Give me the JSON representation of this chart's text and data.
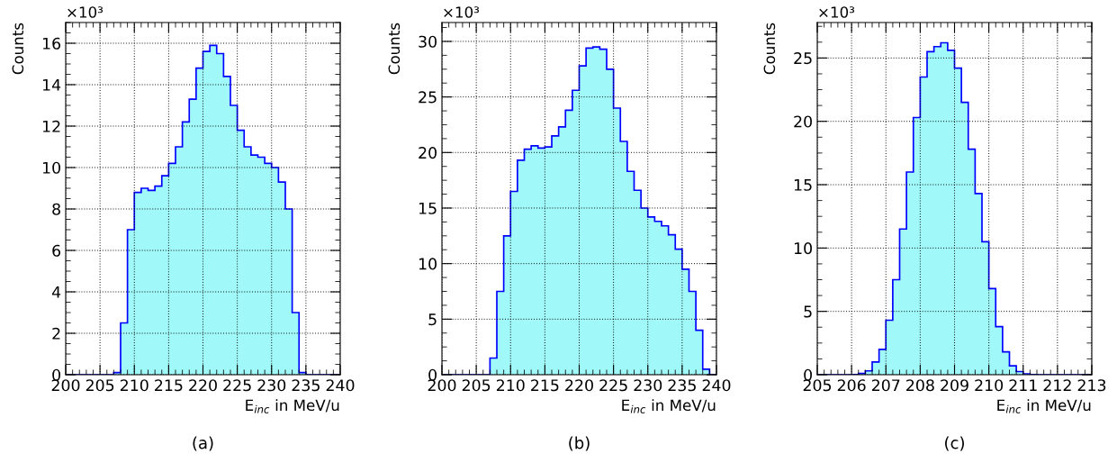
{
  "chart_data": [
    {
      "type": "histogram",
      "xlabel": "E$_{inc}$ in MeV/u",
      "ylabel": "Counts",
      "annotations": [
        "×10³",
        "(a)"
      ],
      "color": "#a0f8f8",
      "grid": true,
      "bins": [
        200,
        201,
        202,
        203,
        204,
        205,
        206,
        207,
        208,
        209,
        210,
        211,
        212,
        213,
        214,
        215,
        216,
        217,
        218,
        219,
        220,
        221,
        222,
        223,
        224,
        225,
        226,
        227,
        228,
        229,
        230,
        231,
        232,
        233,
        234,
        235,
        236,
        237,
        238,
        239,
        240
      ],
      "values": [
        0,
        0,
        0,
        0,
        0,
        0,
        0,
        0.1,
        2.5,
        7.0,
        8.8,
        9.0,
        8.9,
        9.1,
        9.6,
        10.2,
        11.0,
        12.2,
        13.3,
        14.8,
        15.6,
        15.9,
        15.5,
        14.4,
        13.0,
        11.8,
        11.0,
        10.6,
        10.5,
        10.2,
        10.0,
        9.3,
        8.0,
        3.0,
        0.1,
        0,
        0,
        0,
        0,
        0
      ],
      "xlim": [
        200,
        240
      ],
      "xticks": [
        200,
        205,
        210,
        215,
        220,
        225,
        230,
        235,
        240
      ],
      "ylim": [
        0,
        17
      ],
      "yticks": [
        0,
        2,
        4,
        6,
        8,
        10,
        12,
        14,
        16
      ]
    },
    {
      "type": "histogram",
      "xlabel": "E$_{inc}$ in MeV/u",
      "ylabel": "Counts",
      "annotations": [
        "×10³",
        "(b)"
      ],
      "color": "#a0f8f8",
      "grid": true,
      "bins": [
        200,
        201,
        202,
        203,
        204,
        205,
        206,
        207,
        208,
        209,
        210,
        211,
        212,
        213,
        214,
        215,
        216,
        217,
        218,
        219,
        220,
        221,
        222,
        223,
        224,
        225,
        226,
        227,
        228,
        229,
        230,
        231,
        232,
        233,
        234,
        235,
        236,
        237,
        238,
        239,
        240
      ],
      "values": [
        0,
        0,
        0,
        0,
        0,
        0,
        0,
        1.5,
        7.5,
        12.5,
        16.5,
        19.3,
        20.3,
        20.6,
        20.4,
        20.5,
        21.5,
        22.3,
        23.8,
        25.6,
        27.8,
        29.4,
        29.5,
        29.3,
        27.5,
        24.0,
        21.0,
        18.3,
        16.6,
        15.0,
        14.2,
        13.8,
        13.4,
        12.6,
        11.3,
        9.5,
        7.5,
        4.0,
        0.5,
        0
      ],
      "xlim": [
        200,
        240
      ],
      "xticks": [
        200,
        205,
        210,
        215,
        220,
        225,
        230,
        235,
        240
      ],
      "ylim": [
        0,
        31.7
      ],
      "yticks": [
        0,
        5,
        10,
        15,
        20,
        25,
        30
      ]
    },
    {
      "type": "histogram",
      "xlabel": "E$_{inc}$ in MeV/u",
      "ylabel": "Counts",
      "annotations": [
        "×10³",
        "(c)"
      ],
      "color": "#a0f8f8",
      "grid": true,
      "bins": [
        205.0,
        205.2,
        205.4,
        205.6,
        205.8,
        206.0,
        206.2,
        206.4,
        206.6,
        206.8,
        207.0,
        207.2,
        207.4,
        207.6,
        207.8,
        208.0,
        208.2,
        208.4,
        208.6,
        208.8,
        209.0,
        209.2,
        209.4,
        209.6,
        209.8,
        210.0,
        210.2,
        210.4,
        210.6,
        210.8,
        211.0,
        211.2,
        211.4,
        211.6,
        211.8,
        212.0,
        212.2,
        212.4,
        212.6,
        212.8,
        213.0
      ],
      "values": [
        0,
        0,
        0,
        0,
        0,
        0.02,
        0.1,
        0.3,
        1.0,
        2.0,
        4.3,
        7.5,
        11.5,
        16.0,
        20.3,
        23.5,
        25.5,
        25.9,
        26.2,
        25.6,
        24.2,
        21.5,
        17.8,
        14.3,
        10.5,
        6.8,
        3.8,
        1.8,
        0.7,
        0.25,
        0.07,
        0.02,
        0,
        0,
        0,
        0,
        0,
        0,
        0,
        0
      ],
      "xlim": [
        205,
        213
      ],
      "xticks": [
        205,
        206,
        207,
        208,
        209,
        210,
        211,
        212,
        213
      ],
      "ylim": [
        0,
        27.8
      ],
      "yticks": [
        0,
        5,
        10,
        15,
        20,
        25
      ]
    }
  ]
}
